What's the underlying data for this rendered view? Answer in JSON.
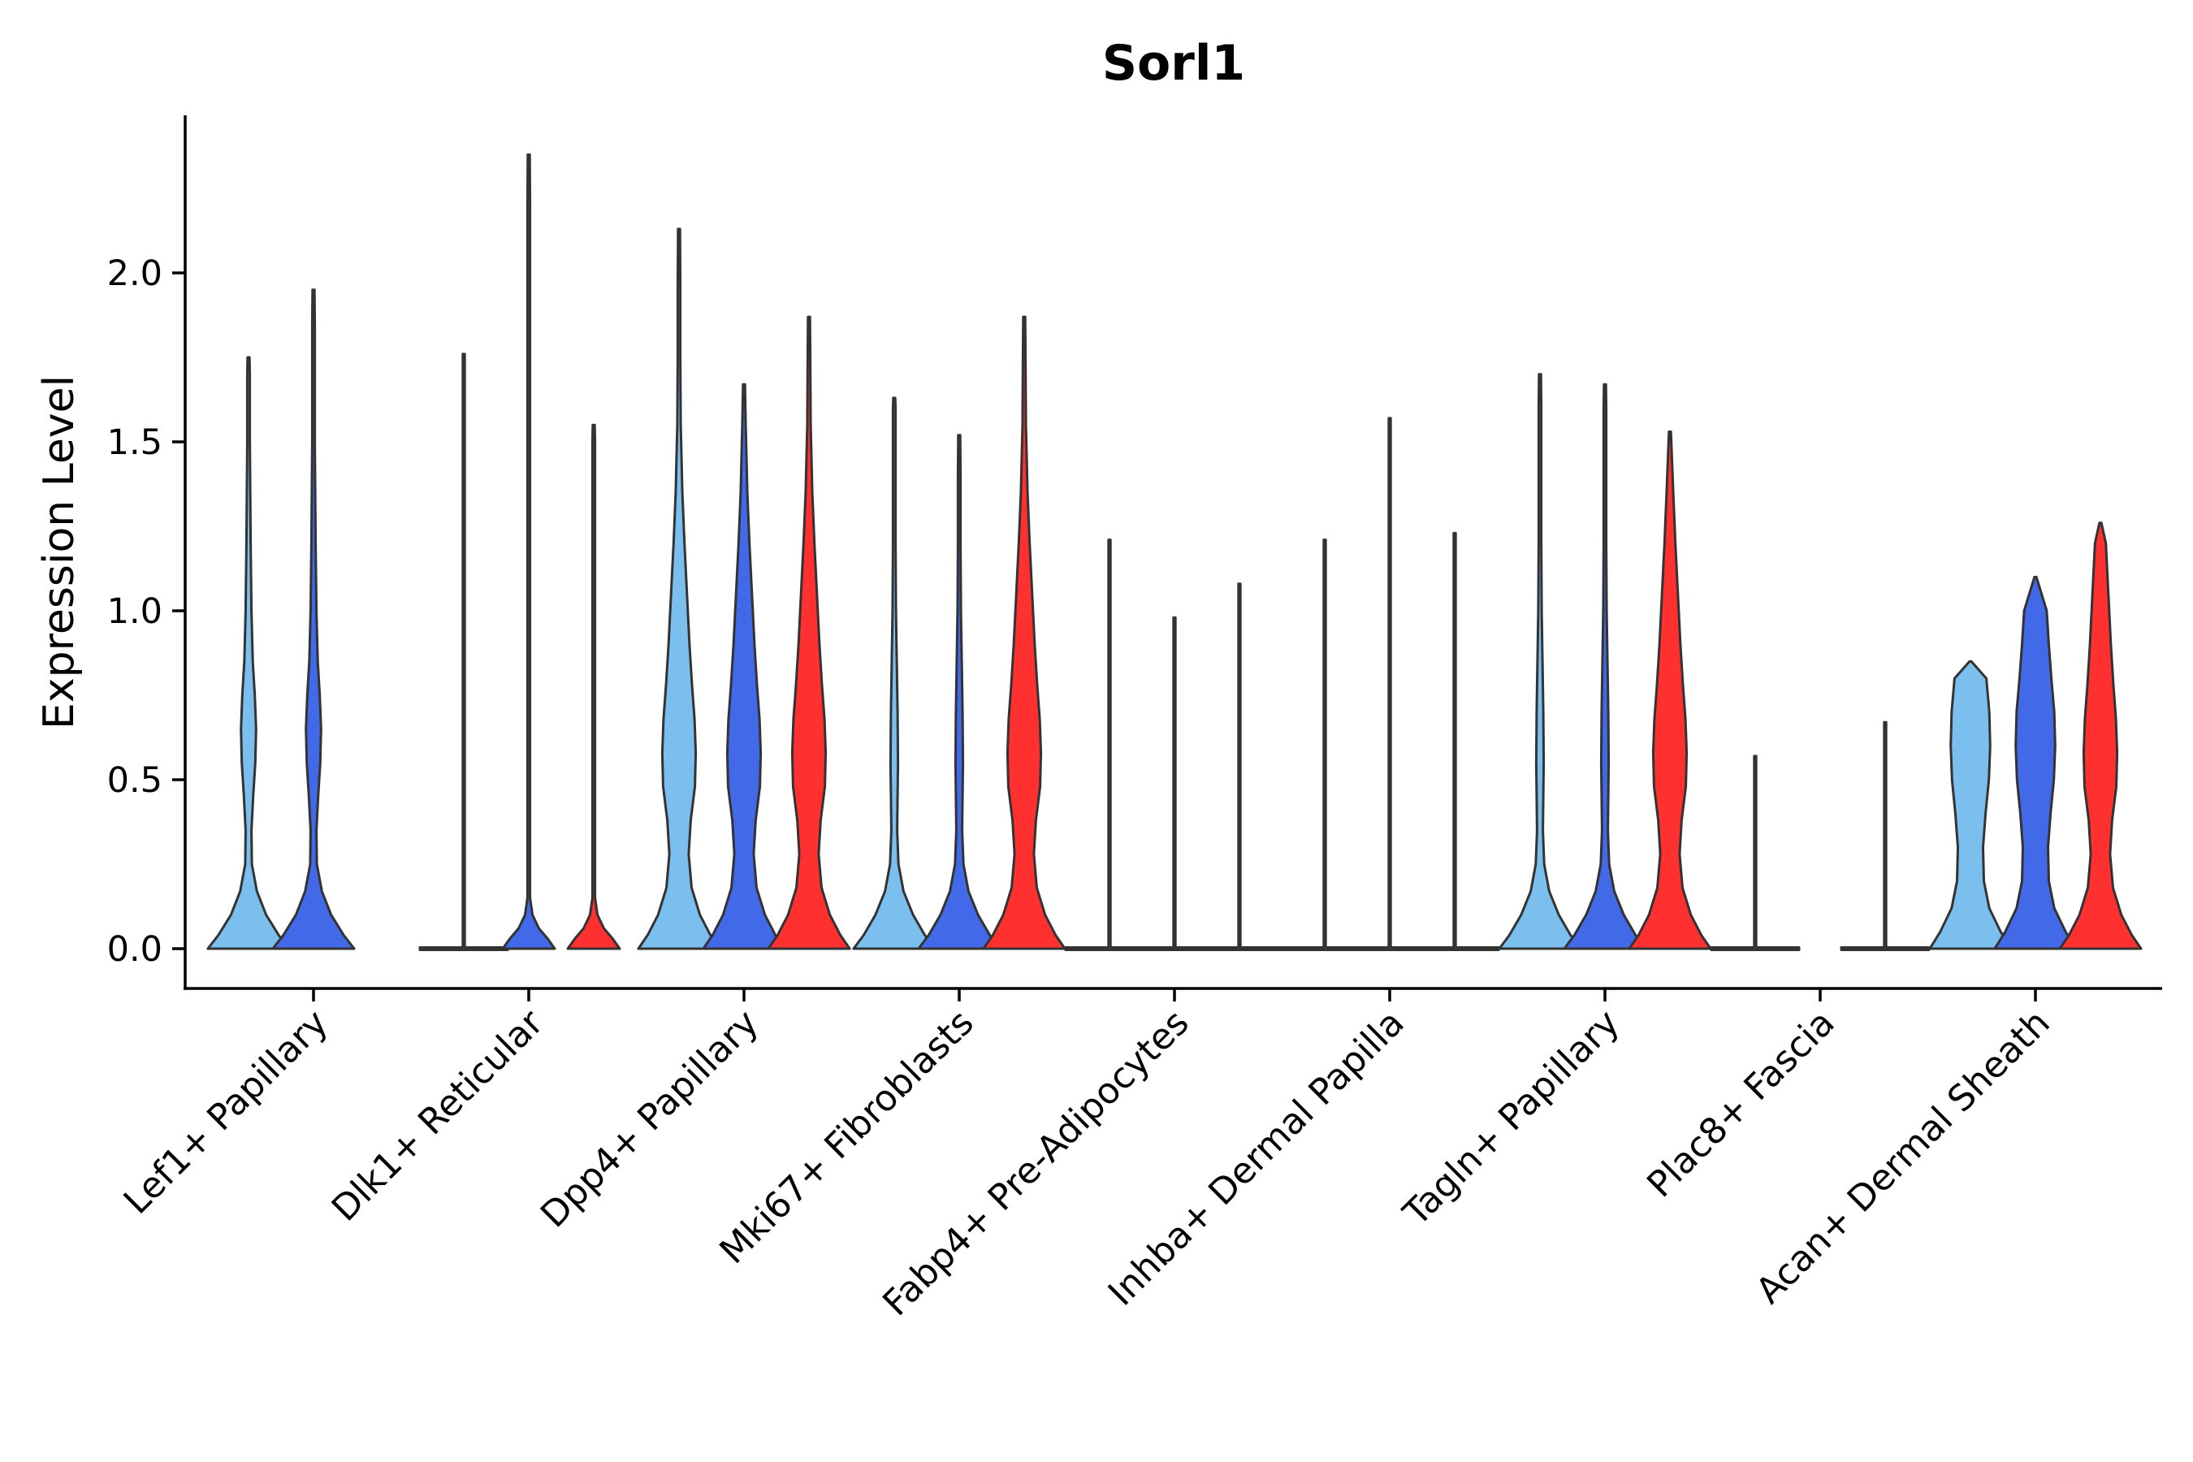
{
  "chart_data": {
    "type": "violin",
    "title": "Sorl1",
    "xlabel": "",
    "ylabel": "Expression Level",
    "ylim": [
      -0.12,
      2.47
    ],
    "yticks": [
      "0.0",
      "0.5",
      "1.0",
      "1.5",
      "2.0"
    ],
    "grid": false,
    "legend": "none",
    "series_colors": [
      "#7BBFEE",
      "#4169E8",
      "#FF3030"
    ],
    "categories": [
      {
        "label": "Lef1+ Papillary",
        "violins": [
          {
            "group": 0,
            "max": 1.75,
            "width": 0.86,
            "shape": "mid"
          },
          {
            "group": 1,
            "max": 1.95,
            "width": 0.86,
            "shape": "mid"
          }
        ]
      },
      {
        "label": "Dlk1+ Reticular",
        "violins": [
          {
            "group": 0,
            "max": 1.76,
            "width": 0.9,
            "shape": "flat"
          },
          {
            "group": 1,
            "max": 2.35,
            "width": 0.55,
            "shape": "low"
          },
          {
            "group": 2,
            "max": 1.55,
            "width": 0.55,
            "shape": "low"
          }
        ]
      },
      {
        "label": "Dpp4+ Papillary",
        "violins": [
          {
            "group": 0,
            "max": 2.13,
            "width": 0.86,
            "shape": "wide"
          },
          {
            "group": 1,
            "max": 1.67,
            "width": 0.86,
            "shape": "wide"
          },
          {
            "group": 2,
            "max": 1.87,
            "width": 0.86,
            "shape": "wide"
          }
        ]
      },
      {
        "label": "Mki67+ Fibroblasts",
        "violins": [
          {
            "group": 0,
            "max": 1.63,
            "width": 0.86,
            "shape": "narrow"
          },
          {
            "group": 1,
            "max": 1.52,
            "width": 0.86,
            "shape": "narrow"
          },
          {
            "group": 2,
            "max": 1.87,
            "width": 0.86,
            "shape": "wide"
          }
        ]
      },
      {
        "label": "Fabp4+ Pre-Adipocytes",
        "violins": [
          {
            "group": 0,
            "max": 1.21,
            "width": 0.9,
            "shape": "flat"
          },
          {
            "group": 1,
            "max": 0.98,
            "width": 0.9,
            "shape": "flat"
          },
          {
            "group": 2,
            "max": 1.08,
            "width": 0.9,
            "shape": "flat"
          }
        ]
      },
      {
        "label": "Inhba+ Dermal Papilla",
        "violins": [
          {
            "group": 0,
            "max": 1.21,
            "width": 0.9,
            "shape": "flat"
          },
          {
            "group": 1,
            "max": 1.57,
            "width": 0.9,
            "shape": "flat"
          },
          {
            "group": 2,
            "max": 1.23,
            "width": 0.9,
            "shape": "flat"
          }
        ]
      },
      {
        "label": "Tagln+ Papillary",
        "violins": [
          {
            "group": 0,
            "max": 1.7,
            "width": 0.86,
            "shape": "narrow"
          },
          {
            "group": 1,
            "max": 1.67,
            "width": 0.86,
            "shape": "narrow"
          },
          {
            "group": 2,
            "max": 1.53,
            "width": 0.86,
            "shape": "wide"
          }
        ]
      },
      {
        "label": "Plac8+ Fascia",
        "violins": [
          {
            "group": 0,
            "max": 0.57,
            "width": 0.9,
            "shape": "flat"
          },
          {
            "group": 2,
            "max": 0.67,
            "width": 0.9,
            "shape": "flat"
          }
        ]
      },
      {
        "label": "Acan+ Dermal Sheath",
        "violins": [
          {
            "group": 0,
            "max": 0.85,
            "width": 0.86,
            "shape": "box"
          },
          {
            "group": 1,
            "max": 1.1,
            "width": 0.86,
            "shape": "box"
          },
          {
            "group": 2,
            "max": 1.26,
            "width": 0.86,
            "shape": "wide"
          }
        ]
      }
    ]
  }
}
